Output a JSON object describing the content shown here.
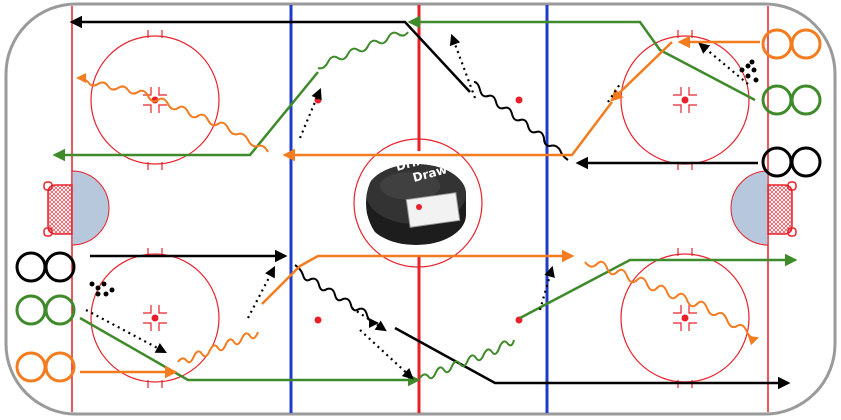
{
  "diagram": {
    "logo": {
      "line1": "Drill",
      "line2": "Draw"
    },
    "colors": {
      "ice": "#ffffff",
      "boards": "#9a9a9a",
      "red_line": "#e8202a",
      "faceoff_circle": "#e8202a",
      "blue_line": "#1f3cc8",
      "crease": "#b7c7dc",
      "team_black": "#000000",
      "team_green": "#3f8a2b",
      "team_orange": "#f47c20",
      "puck_dot": "#000000",
      "puck_logo_bg": "#1d1d1d"
    },
    "player_groups": [
      {
        "name": "orange-group-top-right",
        "color": "orange",
        "count": 2
      },
      {
        "name": "green-group-top-right",
        "color": "green",
        "count": 2
      },
      {
        "name": "black-group-top-right",
        "color": "black",
        "count": 2
      },
      {
        "name": "black-group-bottom-left",
        "color": "black",
        "count": 2
      },
      {
        "name": "green-group-bottom-left",
        "color": "green",
        "count": 2
      },
      {
        "name": "orange-group-bottom-left",
        "color": "orange",
        "count": 2
      }
    ]
  }
}
